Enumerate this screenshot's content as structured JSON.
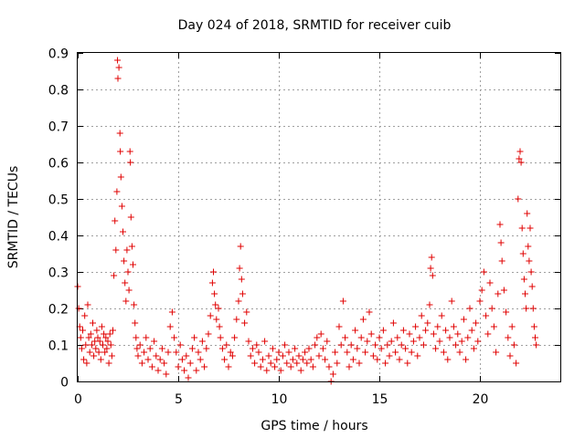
{
  "chart_data": {
    "type": "scatter",
    "title": "Day 024 of 2018, SRMTID for receiver cuib",
    "xlabel": "GPS time / hours",
    "ylabel": "SRMTID / TECUs",
    "xlim": [
      0,
      24
    ],
    "ylim": [
      0,
      0.9
    ],
    "xticks": [
      "0",
      "5",
      "10",
      "15",
      "20"
    ],
    "yticks": [
      "0",
      "0.1",
      "0.2",
      "0.3",
      "0.4",
      "0.5",
      "0.6",
      "0.7",
      "0.8",
      "0.9"
    ],
    "grid": true,
    "marker": "+",
    "series_color": "#e00000",
    "series": [
      {
        "name": "SRMTID",
        "points": [
          [
            0.0,
            0.26
          ],
          [
            0.05,
            0.2
          ],
          [
            0.1,
            0.15
          ],
          [
            0.15,
            0.12
          ],
          [
            0.2,
            0.09
          ],
          [
            0.25,
            0.14
          ],
          [
            0.3,
            0.06
          ],
          [
            0.35,
            0.18
          ],
          [
            0.4,
            0.1
          ],
          [
            0.45,
            0.05
          ],
          [
            0.5,
            0.21
          ],
          [
            0.55,
            0.12
          ],
          [
            0.6,
            0.08
          ],
          [
            0.65,
            0.13
          ],
          [
            0.7,
            0.1
          ],
          [
            0.75,
            0.16
          ],
          [
            0.8,
            0.07
          ],
          [
            0.85,
            0.11
          ],
          [
            0.9,
            0.09
          ],
          [
            0.95,
            0.14
          ],
          [
            1.0,
            0.12
          ],
          [
            1.05,
            0.08
          ],
          [
            1.1,
            0.11
          ],
          [
            1.15,
            0.06
          ],
          [
            1.2,
            0.15
          ],
          [
            1.25,
            0.1
          ],
          [
            1.3,
            0.13
          ],
          [
            1.35,
            0.08
          ],
          [
            1.4,
            0.12
          ],
          [
            1.45,
            0.09
          ],
          [
            1.5,
            0.11
          ],
          [
            1.55,
            0.05
          ],
          [
            1.6,
            0.13
          ],
          [
            1.65,
            0.1
          ],
          [
            1.7,
            0.07
          ],
          [
            1.75,
            0.14
          ],
          [
            1.8,
            0.29
          ],
          [
            1.85,
            0.44
          ],
          [
            1.9,
            0.36
          ],
          [
            1.95,
            0.52
          ],
          [
            1.98,
            0.88
          ],
          [
            2.0,
            0.83
          ],
          [
            2.05,
            0.86
          ],
          [
            2.1,
            0.68
          ],
          [
            2.12,
            0.63
          ],
          [
            2.15,
            0.56
          ],
          [
            2.2,
            0.48
          ],
          [
            2.25,
            0.41
          ],
          [
            2.3,
            0.33
          ],
          [
            2.35,
            0.27
          ],
          [
            2.4,
            0.22
          ],
          [
            2.45,
            0.36
          ],
          [
            2.5,
            0.3
          ],
          [
            2.55,
            0.25
          ],
          [
            2.6,
            0.63
          ],
          [
            2.62,
            0.6
          ],
          [
            2.65,
            0.45
          ],
          [
            2.7,
            0.37
          ],
          [
            2.75,
            0.32
          ],
          [
            2.8,
            0.21
          ],
          [
            2.85,
            0.16
          ],
          [
            2.9,
            0.12
          ],
          [
            2.95,
            0.09
          ],
          [
            3.0,
            0.07
          ],
          [
            3.1,
            0.1
          ],
          [
            3.2,
            0.05
          ],
          [
            3.3,
            0.08
          ],
          [
            3.4,
            0.12
          ],
          [
            3.5,
            0.06
          ],
          [
            3.6,
            0.09
          ],
          [
            3.7,
            0.04
          ],
          [
            3.8,
            0.11
          ],
          [
            3.9,
            0.07
          ],
          [
            4.0,
            0.03
          ],
          [
            4.1,
            0.06
          ],
          [
            4.2,
            0.09
          ],
          [
            4.3,
            0.05
          ],
          [
            4.4,
            0.02
          ],
          [
            4.5,
            0.08
          ],
          [
            4.6,
            0.15
          ],
          [
            4.7,
            0.19
          ],
          [
            4.8,
            0.12
          ],
          [
            4.9,
            0.08
          ],
          [
            5.0,
            0.04
          ],
          [
            5.1,
            0.1
          ],
          [
            5.2,
            0.06
          ],
          [
            5.3,
            0.03
          ],
          [
            5.4,
            0.07
          ],
          [
            5.5,
            0.01
          ],
          [
            5.6,
            0.05
          ],
          [
            5.7,
            0.09
          ],
          [
            5.8,
            0.12
          ],
          [
            5.9,
            0.03
          ],
          [
            6.0,
            0.08
          ],
          [
            6.1,
            0.06
          ],
          [
            6.2,
            0.11
          ],
          [
            6.3,
            0.04
          ],
          [
            6.4,
            0.09
          ],
          [
            6.5,
            0.13
          ],
          [
            6.6,
            0.18
          ],
          [
            6.7,
            0.27
          ],
          [
            6.75,
            0.3
          ],
          [
            6.8,
            0.24
          ],
          [
            6.85,
            0.21
          ],
          [
            6.9,
            0.17
          ],
          [
            7.0,
            0.2
          ],
          [
            7.05,
            0.15
          ],
          [
            7.1,
            0.12
          ],
          [
            7.2,
            0.09
          ],
          [
            7.3,
            0.06
          ],
          [
            7.4,
            0.1
          ],
          [
            7.5,
            0.04
          ],
          [
            7.6,
            0.08
          ],
          [
            7.7,
            0.07
          ],
          [
            7.8,
            0.12
          ],
          [
            7.9,
            0.17
          ],
          [
            8.0,
            0.22
          ],
          [
            8.05,
            0.31
          ],
          [
            8.1,
            0.37
          ],
          [
            8.15,
            0.28
          ],
          [
            8.2,
            0.24
          ],
          [
            8.3,
            0.16
          ],
          [
            8.4,
            0.19
          ],
          [
            8.5,
            0.11
          ],
          [
            8.6,
            0.07
          ],
          [
            8.7,
            0.09
          ],
          [
            8.8,
            0.05
          ],
          [
            8.9,
            0.1
          ],
          [
            9.0,
            0.08
          ],
          [
            9.1,
            0.04
          ],
          [
            9.2,
            0.06
          ],
          [
            9.3,
            0.11
          ],
          [
            9.4,
            0.03
          ],
          [
            9.5,
            0.07
          ],
          [
            9.6,
            0.05
          ],
          [
            9.7,
            0.09
          ],
          [
            9.8,
            0.04
          ],
          [
            9.9,
            0.06
          ],
          [
            10.0,
            0.08
          ],
          [
            10.1,
            0.03
          ],
          [
            10.2,
            0.07
          ],
          [
            10.3,
            0.1
          ],
          [
            10.4,
            0.05
          ],
          [
            10.5,
            0.08
          ],
          [
            10.6,
            0.04
          ],
          [
            10.7,
            0.06
          ],
          [
            10.8,
            0.09
          ],
          [
            10.9,
            0.05
          ],
          [
            11.0,
            0.07
          ],
          [
            11.1,
            0.03
          ],
          [
            11.2,
            0.06
          ],
          [
            11.3,
            0.08
          ],
          [
            11.4,
            0.05
          ],
          [
            11.5,
            0.09
          ],
          [
            11.6,
            0.06
          ],
          [
            11.7,
            0.04
          ],
          [
            11.8,
            0.1
          ],
          [
            11.9,
            0.12
          ],
          [
            12.0,
            0.07
          ],
          [
            12.1,
            0.13
          ],
          [
            12.2,
            0.09
          ],
          [
            12.3,
            0.06
          ],
          [
            12.4,
            0.11
          ],
          [
            12.5,
            0.04
          ],
          [
            12.6,
            0.0
          ],
          [
            12.7,
            0.02
          ],
          [
            12.8,
            0.08
          ],
          [
            12.9,
            0.05
          ],
          [
            13.0,
            0.15
          ],
          [
            13.1,
            0.1
          ],
          [
            13.2,
            0.22
          ],
          [
            13.3,
            0.12
          ],
          [
            13.4,
            0.08
          ],
          [
            13.5,
            0.04
          ],
          [
            13.6,
            0.1
          ],
          [
            13.7,
            0.06
          ],
          [
            13.8,
            0.14
          ],
          [
            13.9,
            0.09
          ],
          [
            14.0,
            0.05
          ],
          [
            14.1,
            0.12
          ],
          [
            14.2,
            0.17
          ],
          [
            14.3,
            0.08
          ],
          [
            14.4,
            0.11
          ],
          [
            14.5,
            0.19
          ],
          [
            14.6,
            0.13
          ],
          [
            14.7,
            0.07
          ],
          [
            14.8,
            0.1
          ],
          [
            14.9,
            0.06
          ],
          [
            15.0,
            0.12
          ],
          [
            15.1,
            0.09
          ],
          [
            15.2,
            0.14
          ],
          [
            15.3,
            0.05
          ],
          [
            15.4,
            0.1
          ],
          [
            15.5,
            0.07
          ],
          [
            15.6,
            0.11
          ],
          [
            15.7,
            0.16
          ],
          [
            15.8,
            0.08
          ],
          [
            15.9,
            0.12
          ],
          [
            16.0,
            0.06
          ],
          [
            16.1,
            0.1
          ],
          [
            16.2,
            0.14
          ],
          [
            16.3,
            0.09
          ],
          [
            16.4,
            0.05
          ],
          [
            16.5,
            0.13
          ],
          [
            16.6,
            0.08
          ],
          [
            16.7,
            0.11
          ],
          [
            16.8,
            0.15
          ],
          [
            16.9,
            0.07
          ],
          [
            17.0,
            0.12
          ],
          [
            17.1,
            0.18
          ],
          [
            17.2,
            0.1
          ],
          [
            17.3,
            0.14
          ],
          [
            17.4,
            0.16
          ],
          [
            17.5,
            0.21
          ],
          [
            17.55,
            0.31
          ],
          [
            17.6,
            0.34
          ],
          [
            17.65,
            0.29
          ],
          [
            17.7,
            0.13
          ],
          [
            17.8,
            0.09
          ],
          [
            17.9,
            0.15
          ],
          [
            18.0,
            0.11
          ],
          [
            18.1,
            0.18
          ],
          [
            18.2,
            0.08
          ],
          [
            18.3,
            0.14
          ],
          [
            18.4,
            0.06
          ],
          [
            18.5,
            0.12
          ],
          [
            18.6,
            0.22
          ],
          [
            18.7,
            0.15
          ],
          [
            18.8,
            0.1
          ],
          [
            18.9,
            0.13
          ],
          [
            19.0,
            0.08
          ],
          [
            19.1,
            0.11
          ],
          [
            19.2,
            0.17
          ],
          [
            19.3,
            0.06
          ],
          [
            19.4,
            0.12
          ],
          [
            19.5,
            0.2
          ],
          [
            19.6,
            0.14
          ],
          [
            19.7,
            0.09
          ],
          [
            19.8,
            0.16
          ],
          [
            19.9,
            0.11
          ],
          [
            20.0,
            0.22
          ],
          [
            20.1,
            0.25
          ],
          [
            20.2,
            0.3
          ],
          [
            20.3,
            0.18
          ],
          [
            20.4,
            0.13
          ],
          [
            20.5,
            0.27
          ],
          [
            20.6,
            0.2
          ],
          [
            20.7,
            0.15
          ],
          [
            20.8,
            0.08
          ],
          [
            20.9,
            0.24
          ],
          [
            21.0,
            0.43
          ],
          [
            21.05,
            0.38
          ],
          [
            21.1,
            0.33
          ],
          [
            21.2,
            0.25
          ],
          [
            21.3,
            0.19
          ],
          [
            21.4,
            0.12
          ],
          [
            21.5,
            0.07
          ],
          [
            21.6,
            0.15
          ],
          [
            21.7,
            0.1
          ],
          [
            21.8,
            0.05
          ],
          [
            21.9,
            0.5
          ],
          [
            21.95,
            0.61
          ],
          [
            22.0,
            0.63
          ],
          [
            22.05,
            0.6
          ],
          [
            22.1,
            0.42
          ],
          [
            22.15,
            0.35
          ],
          [
            22.2,
            0.28
          ],
          [
            22.25,
            0.24
          ],
          [
            22.3,
            0.2
          ],
          [
            22.35,
            0.46
          ],
          [
            22.4,
            0.37
          ],
          [
            22.45,
            0.33
          ],
          [
            22.5,
            0.42
          ],
          [
            22.55,
            0.3
          ],
          [
            22.6,
            0.26
          ],
          [
            22.65,
            0.2
          ],
          [
            22.7,
            0.15
          ],
          [
            22.75,
            0.12
          ],
          [
            22.8,
            0.1
          ]
        ]
      }
    ]
  }
}
